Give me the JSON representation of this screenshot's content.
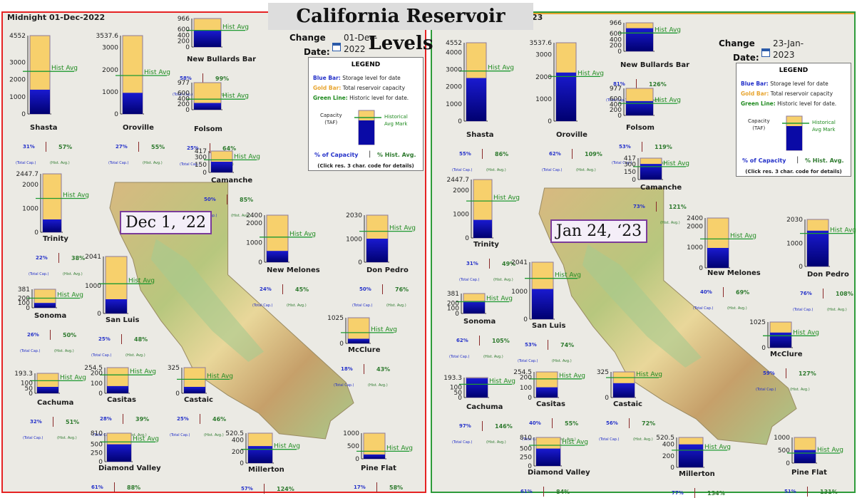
{
  "title": "California Reservoir Levels",
  "colors": {
    "capacity": "#f7d06c",
    "storage": "#0a0aa6",
    "hist": "#1e9a32",
    "left_border": "#e52222",
    "right_border": "#2e9b3a"
  },
  "labels": {
    "hist_avg": "Hist Avg",
    "total_cap": "(Total Cap.)",
    "hist_avg_foot": "(Hist. Avg.)"
  },
  "legend": {
    "title": "LEGEND",
    "blue_key": "Blue Bar:",
    "blue_text": "Storage level for date",
    "gold_key": "Gold Bar:",
    "gold_text": "Total reservoir capacity",
    "green_key": "Green Line:",
    "green_text": "Historic level for date.",
    "capacity_label": "Capacity",
    "capacity_unit": "(TAF)",
    "hist_mark_1": "Historical",
    "hist_mark_2": "Avg Mark",
    "pct_capacity": "% of Capacity",
    "separator": "|",
    "pct_hist": "% Hist. Avg.",
    "click_hint": "(Click res. 3 char. code for details)"
  },
  "panels": [
    {
      "header_clip": "Midnight 01-Dec-2022",
      "change_label_1": "Change",
      "change_label_2": "Date:",
      "date_line1": "01-Dec-",
      "date_line2": "2022",
      "badge": "Dec 1, ‘22"
    },
    {
      "header_clip": "23",
      "change_label_1": "Change",
      "change_label_2": "Date:",
      "date_line1": "23-Jan-",
      "date_line2": "2023",
      "badge": "Jan 24, ‘23"
    }
  ],
  "chart_data": [
    {
      "type": "bar",
      "title": "Dec 1, ‘22",
      "reservoirs": [
        {
          "name": "Shasta",
          "capacity": 4552,
          "ticks": [
            "4552",
            "3000",
            "2000",
            "1000",
            "0"
          ],
          "storage_pct": 31,
          "hist_pct": 57,
          "pct_capacity": "31%",
          "pct_hist": "57%"
        },
        {
          "name": "Oroville",
          "capacity": 3537.6,
          "ticks": [
            "3537.6",
            "3000",
            "2000",
            "1000",
            "0"
          ],
          "storage_pct": 27,
          "hist_pct": 55,
          "pct_capacity": "27%",
          "pct_hist": "55%"
        },
        {
          "name": "New Bullards Bar",
          "capacity": 966,
          "ticks": [
            "966",
            "600",
            "400",
            "200",
            "0"
          ],
          "storage_pct": 58,
          "hist_pct": 99,
          "pct_capacity": "58%",
          "pct_hist": "99%"
        },
        {
          "name": "Folsom",
          "capacity": 977,
          "ticks": [
            "977",
            "600",
            "400",
            "200",
            "0"
          ],
          "storage_pct": 25,
          "hist_pct": 64,
          "pct_capacity": "25%",
          "pct_hist": "64%"
        },
        {
          "name": "Camanche",
          "capacity": 417,
          "ticks": [
            "417",
            "300",
            "150",
            "0"
          ],
          "storage_pct": 50,
          "hist_pct": 85,
          "pct_capacity": "50%",
          "pct_hist": "85%"
        },
        {
          "name": "Trinity",
          "capacity": 2447.7,
          "ticks": [
            "2447.7",
            "2000",
            "1000",
            "0"
          ],
          "storage_pct": 22,
          "hist_pct": 38,
          "pct_capacity": "22%",
          "pct_hist": "38%"
        },
        {
          "name": "New Melones",
          "capacity": 2400,
          "ticks": [
            "2400",
            "2000",
            "1000",
            "0"
          ],
          "storage_pct": 24,
          "hist_pct": 45,
          "pct_capacity": "24%",
          "pct_hist": "45%"
        },
        {
          "name": "Don Pedro",
          "capacity": 2030,
          "ticks": [
            "2030",
            "1000",
            "0"
          ],
          "storage_pct": 50,
          "hist_pct": 76,
          "pct_capacity": "50%",
          "pct_hist": "76%"
        },
        {
          "name": "Sonoma",
          "capacity": 381,
          "ticks": [
            "381",
            "200",
            "100",
            "0"
          ],
          "storage_pct": 26,
          "hist_pct": 50,
          "pct_capacity": "26%",
          "pct_hist": "50%"
        },
        {
          "name": "San Luis",
          "capacity": 2041,
          "ticks": [
            "2041",
            "1000",
            "0"
          ],
          "storage_pct": 25,
          "hist_pct": 48,
          "pct_capacity": "25%",
          "pct_hist": "48%"
        },
        {
          "name": "McClure",
          "capacity": 1025,
          "ticks": [
            "1025",
            "0"
          ],
          "storage_pct": 18,
          "hist_pct": 43,
          "pct_capacity": "18%",
          "pct_hist": "43%"
        },
        {
          "name": "Cachuma",
          "capacity": 193.3,
          "ticks": [
            "193.3",
            "100",
            "50",
            "0"
          ],
          "storage_pct": 32,
          "hist_pct": 51,
          "pct_capacity": "32%",
          "pct_hist": "51%"
        },
        {
          "name": "Casitas",
          "capacity": 254.5,
          "ticks": [
            "254.5",
            "200",
            "100",
            "0"
          ],
          "storage_pct": 28,
          "hist_pct": 39,
          "pct_capacity": "28%",
          "pct_hist": "39%"
        },
        {
          "name": "Castaic",
          "capacity": 325,
          "ticks": [
            "325",
            "0"
          ],
          "storage_pct": 25,
          "hist_pct": 46,
          "pct_capacity": "25%",
          "pct_hist": "46%"
        },
        {
          "name": "Diamond Valley",
          "capacity": 810,
          "ticks": [
            "810",
            "500",
            "250",
            "0"
          ],
          "storage_pct": 61,
          "hist_pct": 88,
          "pct_capacity": "61%",
          "pct_hist": "88%"
        },
        {
          "name": "Millerton",
          "capacity": 520.5,
          "ticks": [
            "520.5",
            "400",
            "200",
            "0"
          ],
          "storage_pct": 57,
          "hist_pct": 124,
          "pct_capacity": "57%",
          "pct_hist": "124%"
        },
        {
          "name": "Pine Flat",
          "capacity": 1000,
          "ticks": [
            "1000",
            "500",
            "0"
          ],
          "storage_pct": 17,
          "hist_pct": 58,
          "pct_capacity": "17%",
          "pct_hist": "58%"
        }
      ]
    },
    {
      "type": "bar",
      "title": "Jan 24, ‘23",
      "reservoirs": [
        {
          "name": "Shasta",
          "capacity": 4552,
          "ticks": [
            "4552",
            "4000",
            "3000",
            "2000",
            "1000",
            "0"
          ],
          "storage_pct": 55,
          "hist_pct": 86,
          "pct_capacity": "55%",
          "pct_hist": "86%"
        },
        {
          "name": "Oroville",
          "capacity": 3537.6,
          "ticks": [
            "3537.6",
            "3000",
            "2000",
            "1000",
            "0"
          ],
          "storage_pct": 62,
          "hist_pct": 109,
          "pct_capacity": "62%",
          "pct_hist": "109%"
        },
        {
          "name": "New Bullards Bar",
          "capacity": 966,
          "ticks": [
            "966",
            "600",
            "400",
            "200",
            "0"
          ],
          "storage_pct": 81,
          "hist_pct": 126,
          "pct_capacity": "81%",
          "pct_hist": "126%"
        },
        {
          "name": "Folsom",
          "capacity": 977,
          "ticks": [
            "977",
            "600",
            "400",
            "200",
            "0"
          ],
          "storage_pct": 53,
          "hist_pct": 119,
          "pct_capacity": "53%",
          "pct_hist": "119%"
        },
        {
          "name": "Camanche",
          "capacity": 417,
          "ticks": [
            "417",
            "300",
            "150",
            "0"
          ],
          "storage_pct": 73,
          "hist_pct": 121,
          "pct_capacity": "73%",
          "pct_hist": "121%"
        },
        {
          "name": "Trinity",
          "capacity": 2447.7,
          "ticks": [
            "2447.7",
            "2000",
            "1000",
            "0"
          ],
          "storage_pct": 31,
          "hist_pct": 49,
          "pct_capacity": "31%",
          "pct_hist": "49%"
        },
        {
          "name": "New Melones",
          "capacity": 2400,
          "ticks": [
            "2400",
            "2000",
            "1000",
            "0"
          ],
          "storage_pct": 40,
          "hist_pct": 69,
          "pct_capacity": "40%",
          "pct_hist": "69%"
        },
        {
          "name": "Don Pedro",
          "capacity": 2030,
          "ticks": [
            "2030",
            "1000",
            "0"
          ],
          "storage_pct": 76,
          "hist_pct": 108,
          "pct_capacity": "76%",
          "pct_hist": "108%"
        },
        {
          "name": "Sonoma",
          "capacity": 381,
          "ticks": [
            "381",
            "200",
            "100",
            "0"
          ],
          "storage_pct": 62,
          "hist_pct": 105,
          "pct_capacity": "62%",
          "pct_hist": "105%"
        },
        {
          "name": "San Luis",
          "capacity": 2041,
          "ticks": [
            "2041",
            "1000",
            "0"
          ],
          "storage_pct": 53,
          "hist_pct": 74,
          "pct_capacity": "53%",
          "pct_hist": "74%"
        },
        {
          "name": "McClure",
          "capacity": 1025,
          "ticks": [
            "1025",
            "0"
          ],
          "storage_pct": 59,
          "hist_pct": 127,
          "pct_capacity": "59%",
          "pct_hist": "127%"
        },
        {
          "name": "Cachuma",
          "capacity": 193.3,
          "ticks": [
            "193.3",
            "100",
            "50",
            "0"
          ],
          "storage_pct": 97,
          "hist_pct": 146,
          "pct_capacity": "97%",
          "pct_hist": "146%"
        },
        {
          "name": "Casitas",
          "capacity": 254.5,
          "ticks": [
            "254.5",
            "200",
            "100",
            "0"
          ],
          "storage_pct": 40,
          "hist_pct": 55,
          "pct_capacity": "40%",
          "pct_hist": "55%"
        },
        {
          "name": "Castaic",
          "capacity": 325,
          "ticks": [
            "325",
            "0"
          ],
          "storage_pct": 56,
          "hist_pct": 72,
          "pct_capacity": "56%",
          "pct_hist": "72%"
        },
        {
          "name": "Diamond Valley",
          "capacity": 810,
          "ticks": [
            "810",
            "500",
            "250",
            "0"
          ],
          "storage_pct": 61,
          "hist_pct": 84,
          "pct_capacity": "61%",
          "pct_hist": "84%"
        },
        {
          "name": "Millerton",
          "capacity": 520.5,
          "ticks": [
            "520.5",
            "400",
            "200",
            "0"
          ],
          "storage_pct": 77,
          "hist_pct": 134,
          "pct_capacity": "77%",
          "pct_hist": "134%"
        },
        {
          "name": "Pine Flat",
          "capacity": 1000,
          "ticks": [
            "1000",
            "500",
            "0"
          ],
          "storage_pct": 51,
          "hist_pct": 131,
          "pct_capacity": "51%",
          "pct_hist": "131%"
        }
      ]
    }
  ]
}
